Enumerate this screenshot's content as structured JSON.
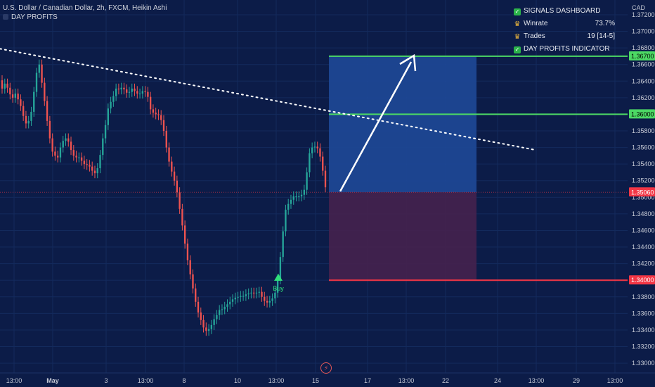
{
  "header": {
    "title": "U.S. Dollar / Canadian Dollar, 2h, FXCM, Heikin Ashi",
    "indicator_label": "DAY PROFITS"
  },
  "dashboard": {
    "title": "SIGNALS DASHBOARD",
    "winrate_label": "Winrate",
    "winrate_value": "73.7%",
    "trades_label": "Trades",
    "trades_value": "19 [14-5]",
    "indicator": "DAY PROFITS INDICATOR"
  },
  "currency": "CAD",
  "price_axis": {
    "ticks": [
      "1.37200",
      "1.37000",
      "1.36800",
      "1.36600",
      "1.36400",
      "1.36200",
      "1.36000",
      "1.35800",
      "1.35600",
      "1.35400",
      "1.35200",
      "1.35000",
      "1.34800",
      "1.34600",
      "1.34400",
      "1.34200",
      "1.34000",
      "1.33800",
      "1.33600",
      "1.33400",
      "1.33200",
      "1.33000"
    ],
    "badges": [
      {
        "label": "1.36700",
        "price": 1.367,
        "color": "#4cd964",
        "text_color": "#000000"
      },
      {
        "label": "1.36000",
        "price": 1.36,
        "color": "#4cd964",
        "text_color": "#000000"
      },
      {
        "label": "1.35060",
        "price": 1.3506,
        "color": "#f23645",
        "text_color": "#ffffff"
      },
      {
        "label": "1.34000",
        "price": 1.34,
        "color": "#f23645",
        "text_color": "#ffffff"
      }
    ]
  },
  "time_axis": {
    "labels": [
      "13:00",
      "May",
      "3",
      "13:00",
      "8",
      "10",
      "13:00",
      "15",
      "17",
      "13:00",
      "22",
      "24",
      "13:00",
      "29",
      "13:00"
    ]
  },
  "signal": {
    "label": "Buy"
  },
  "chart_data": {
    "type": "candlestick",
    "ylim": [
      1.3295,
      1.3731
    ],
    "candles_open": [
      1.3641,
      1.3631,
      1.3637,
      1.3632,
      1.3624,
      1.362,
      1.3625,
      1.3618,
      1.361,
      1.3598,
      1.3589,
      1.3592,
      1.3603,
      1.3627,
      1.365,
      1.366,
      1.3638,
      1.3616,
      1.3592,
      1.3571,
      1.3555,
      1.355,
      1.3548,
      1.356,
      1.3568,
      1.3571,
      1.3567,
      1.3557,
      1.355,
      1.3548,
      1.3548,
      1.3544,
      1.354,
      1.3539,
      1.3537,
      1.3532,
      1.3529,
      1.3535,
      1.3551,
      1.3571,
      1.3587,
      1.3607,
      1.3615,
      1.3622,
      1.3631,
      1.363,
      1.3632,
      1.363,
      1.3626,
      1.3627,
      1.3631,
      1.3628,
      1.3625,
      1.3625,
      1.3628,
      1.3627,
      1.3621,
      1.3606,
      1.3602,
      1.36,
      1.3599,
      1.3593,
      1.358,
      1.356,
      1.3543,
      1.3531,
      1.352,
      1.3506,
      1.3486,
      1.3466,
      1.3444,
      1.3424,
      1.3407,
      1.339,
      1.3374,
      1.3361,
      1.3352,
      1.3343,
      1.3339,
      1.3341,
      1.3346,
      1.3353,
      1.3358,
      1.3364,
      1.3365,
      1.3368,
      1.3371,
      1.3374,
      1.3377,
      1.3379,
      1.338,
      1.3381,
      1.3381,
      1.3383,
      1.3384,
      1.3385,
      1.3384,
      1.3385,
      1.3386,
      1.338,
      1.3375,
      1.3373,
      1.3375,
      1.3378,
      1.3385,
      1.3401,
      1.3428,
      1.3459,
      1.3485,
      1.3492,
      1.3497,
      1.3501,
      1.3501,
      1.3501,
      1.3503,
      1.3509,
      1.353,
      1.3553,
      1.356,
      1.3561,
      1.3559,
      1.3549,
      1.3532
    ],
    "candles_close": [
      1.3631,
      1.3637,
      1.3632,
      1.3624,
      1.362,
      1.3625,
      1.3618,
      1.361,
      1.3598,
      1.3589,
      1.3592,
      1.3603,
      1.3627,
      1.365,
      1.366,
      1.3638,
      1.3616,
      1.3592,
      1.3571,
      1.3555,
      1.355,
      1.3548,
      1.356,
      1.3568,
      1.3571,
      1.3567,
      1.3557,
      1.355,
      1.3548,
      1.3548,
      1.3544,
      1.354,
      1.3539,
      1.3537,
      1.3532,
      1.3529,
      1.3535,
      1.3551,
      1.3571,
      1.3587,
      1.3607,
      1.3615,
      1.3622,
      1.3631,
      1.363,
      1.3632,
      1.363,
      1.3626,
      1.3627,
      1.3631,
      1.3628,
      1.3625,
      1.3625,
      1.3628,
      1.3627,
      1.3621,
      1.3606,
      1.3602,
      1.36,
      1.3599,
      1.3593,
      1.358,
      1.356,
      1.3543,
      1.3531,
      1.352,
      1.3506,
      1.3486,
      1.3466,
      1.3444,
      1.3424,
      1.3407,
      1.339,
      1.3374,
      1.3361,
      1.3352,
      1.3343,
      1.3339,
      1.3341,
      1.3346,
      1.3353,
      1.3358,
      1.3364,
      1.3365,
      1.3368,
      1.3371,
      1.3374,
      1.3377,
      1.3379,
      1.338,
      1.3381,
      1.3381,
      1.3383,
      1.3384,
      1.3385,
      1.3384,
      1.3385,
      1.3386,
      1.338,
      1.3375,
      1.3373,
      1.3375,
      1.3378,
      1.3385,
      1.3401,
      1.3428,
      1.3459,
      1.3485,
      1.3492,
      1.3497,
      1.3501,
      1.3501,
      1.3501,
      1.3503,
      1.3509,
      1.353,
      1.3553,
      1.356,
      1.3561,
      1.3559,
      1.3549,
      1.3532,
      1.3512
    ],
    "trendline_price_at_start": 1.3679,
    "trendline_price_at_end": 1.3557,
    "position": {
      "entry": 1.3506,
      "target": 1.367,
      "stop": 1.34,
      "level": 1.36
    }
  }
}
